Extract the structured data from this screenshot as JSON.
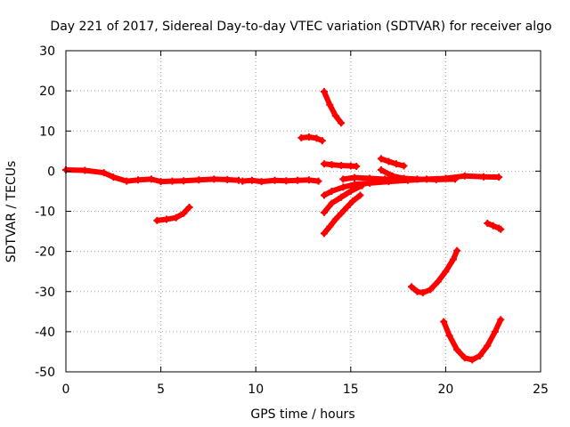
{
  "chart_data": {
    "type": "scatter",
    "title": "Day 221 of 2017, Sidereal Day-to-day VTEC variation (SDTVAR) for receiver algo",
    "xlabel": "GPS time / hours",
    "ylabel": "SDTVAR / TECUs",
    "xlim": [
      0,
      25
    ],
    "ylim": [
      -50,
      30
    ],
    "xticks": [
      0,
      5,
      10,
      15,
      20,
      25
    ],
    "yticks": [
      -50,
      -40,
      -30,
      -20,
      -10,
      0,
      10,
      20,
      30
    ],
    "grid": true,
    "marker": "plus",
    "series": [
      {
        "name": "SDTVAR",
        "color": "#ff0000",
        "segments": [
          {
            "x": [
              0,
              1,
              2,
              2.5,
              3.2,
              3.8,
              4.5,
              5,
              5.6,
              6.2,
              7,
              7.8,
              8.5,
              9.1
            ],
            "y": [
              0.3,
              0.2,
              -0.4,
              -1.5,
              -2.5,
              -2.2,
              -2.0,
              -2.6,
              -2.5,
              -2.4,
              -2.2,
              -2.0,
              -2.1,
              -2.3
            ]
          },
          {
            "x": [
              9.3,
              9.8,
              10.3,
              11,
              11.6,
              12.2,
              12.8,
              13.3
            ],
            "y": [
              -2.5,
              -2.3,
              -2.6,
              -2.3,
              -2.4,
              -2.3,
              -2.2,
              -2.5
            ]
          },
          {
            "x": [
              4.8,
              5.3,
              5.8,
              6.2,
              6.5
            ],
            "y": [
              -12.3,
              -12.0,
              -11.6,
              -10.5,
              -9.0
            ]
          },
          {
            "x": [
              12.4,
              12.8,
              13.2,
              13.5
            ],
            "y": [
              8.3,
              8.5,
              8.2,
              7.6
            ]
          },
          {
            "x": [
              13.6,
              13.9,
              14.2,
              14.5
            ],
            "y": [
              19.8,
              16.5,
              13.8,
              12.0
            ]
          },
          {
            "x": [
              13.6,
              14.0,
              14.5,
              15.0,
              15.3
            ],
            "y": [
              1.8,
              1.6,
              1.4,
              1.3,
              1.2
            ]
          },
          {
            "x": [
              13.6,
              14.0,
              14.6,
              15.2,
              16.0,
              17.0,
              18.0,
              19.0,
              20.0,
              21.0,
              22.0,
              22.8
            ],
            "y": [
              -6.0,
              -5.0,
              -4.0,
              -3.3,
              -3.0,
              -2.6,
              -2.3,
              -2.0,
              -1.8,
              -1.2,
              -1.4,
              -1.5
            ]
          },
          {
            "x": [
              13.6,
              14.0,
              14.5,
              15.0,
              15.6
            ],
            "y": [
              -10.3,
              -8.0,
              -6.5,
              -5.0,
              -3.6
            ]
          },
          {
            "x": [
              13.6,
              13.9,
              14.2,
              14.5,
              14.8,
              15.1,
              15.5
            ],
            "y": [
              -15.5,
              -13.8,
              -12.0,
              -10.5,
              -9.0,
              -7.5,
              -6.0
            ]
          },
          {
            "x": [
              14.6,
              15.2,
              16.0,
              16.8,
              17.5
            ],
            "y": [
              -2.0,
              -1.6,
              -1.8,
              -2.0,
              -2.2
            ]
          },
          {
            "x": [
              16.6,
              17.0,
              17.4,
              17.8
            ],
            "y": [
              3.1,
              2.4,
              1.8,
              1.3
            ]
          },
          {
            "x": [
              16.6,
              17.2,
              17.8,
              18.5,
              19.5,
              20.5
            ],
            "y": [
              0.3,
              -1.2,
              -1.8,
              -2.0,
              -2.1,
              -2.0
            ]
          },
          {
            "x": [
              18.2,
              18.5,
              18.8,
              19.2,
              19.6,
              20.0,
              20.4,
              20.6
            ],
            "y": [
              -28.8,
              -30.0,
              -30.3,
              -29.5,
              -27.5,
              -25.0,
              -22.0,
              -19.8
            ]
          },
          {
            "x": [
              19.9,
              20.2,
              20.6,
              21.0,
              21.4,
              21.8,
              22.2,
              22.6,
              22.9
            ],
            "y": [
              -37.5,
              -41.0,
              -44.5,
              -46.5,
              -47.0,
              -46.0,
              -43.5,
              -40.0,
              -37.0
            ]
          },
          {
            "x": [
              22.2,
              22.5,
              22.8,
              22.9
            ],
            "y": [
              -13.0,
              -13.6,
              -14.2,
              -14.5
            ]
          }
        ]
      }
    ]
  }
}
